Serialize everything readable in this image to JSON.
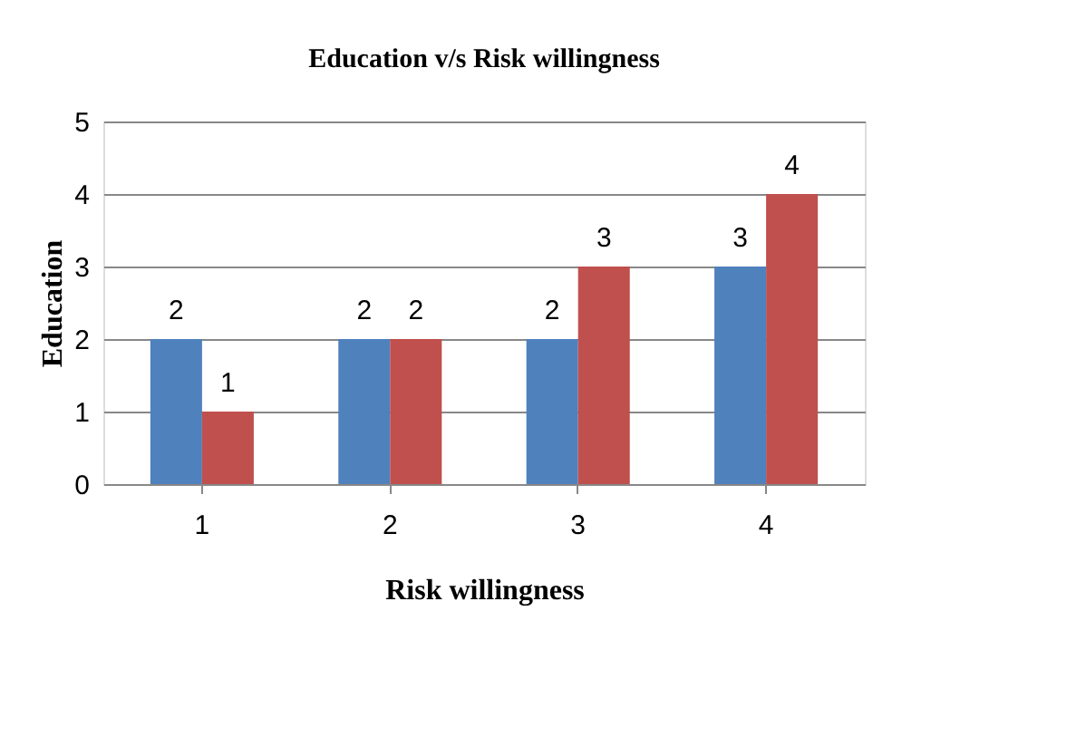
{
  "chart_data": {
    "type": "bar",
    "title": "Education v/s Risk willingness",
    "xlabel": "Risk willingness",
    "ylabel": "Education",
    "categories": [
      "1",
      "2",
      "3",
      "4"
    ],
    "series": [
      {
        "color": "#4f81bd",
        "values": [
          2,
          2,
          2,
          3
        ]
      },
      {
        "color": "#c0504d",
        "values": [
          1,
          2,
          3,
          4
        ]
      }
    ],
    "ylim": [
      0,
      5
    ],
    "yticks": [
      0,
      1,
      2,
      3,
      4,
      5
    ],
    "grid": "y",
    "data_labels": true,
    "legend": false
  }
}
